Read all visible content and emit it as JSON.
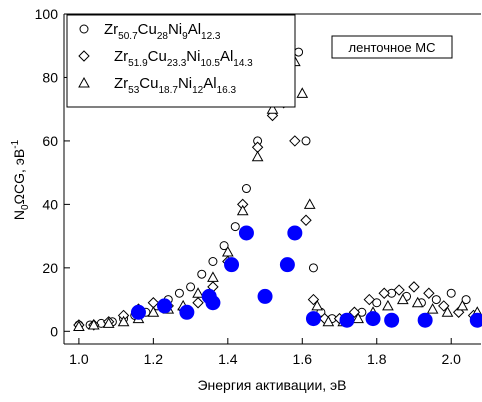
{
  "chart_data": {
    "type": "scatter",
    "ylabel": [
      "N",
      "0",
      "ΩCG, эВ",
      "-1"
    ],
    "xlabel": "Энергия активации, эВ",
    "annotation": "ленточное МС",
    "xlim": [
      0.96,
      2.08
    ],
    "ylim": [
      -4,
      100
    ],
    "xticks": [
      {
        "value": 1,
        "label": "1.0"
      },
      1.2,
      1.4,
      1.6,
      1.8,
      {
        "value": 2,
        "label": "2.0"
      }
    ],
    "yticks": [
      0,
      20,
      40,
      60,
      80,
      100
    ],
    "series": [
      {
        "name": [
          "Zr",
          "50.7",
          "Cu",
          "28",
          "Ni",
          "9",
          "Al",
          "12.3"
        ],
        "marker": "circle",
        "color": "#000000",
        "x": [
          1.0,
          1.03,
          1.06,
          1.09,
          1.12,
          1.15,
          1.18,
          1.21,
          1.24,
          1.27,
          1.3,
          1.33,
          1.36,
          1.39,
          1.42,
          1.45,
          1.48,
          1.51,
          1.54,
          1.57,
          1.59,
          1.61,
          1.63,
          1.65,
          1.68,
          1.72,
          1.76,
          1.8,
          1.84,
          1.88,
          1.92,
          1.96,
          2.0,
          2.04
        ],
        "values": [
          2,
          2,
          2.5,
          3,
          4,
          5,
          6,
          8,
          10,
          12,
          14,
          18,
          22,
          27,
          33,
          45,
          60,
          72,
          82,
          90,
          88,
          60,
          20,
          6,
          4,
          4,
          6,
          9,
          12,
          11,
          9,
          10,
          12,
          10
        ]
      },
      {
        "name": [
          "Zr",
          "51.9",
          "Cu",
          "23.3",
          "Ni",
          "10.5",
          "Al",
          "14.3"
        ],
        "marker": "diamond",
        "color": "#000000",
        "x": [
          1.0,
          1.04,
          1.08,
          1.12,
          1.16,
          1.2,
          1.24,
          1.28,
          1.32,
          1.36,
          1.4,
          1.44,
          1.48,
          1.52,
          1.55,
          1.58,
          1.61,
          1.63,
          1.66,
          1.7,
          1.74,
          1.78,
          1.82,
          1.86,
          1.9,
          1.94,
          1.98,
          2.02,
          2.06
        ],
        "values": [
          2,
          2,
          3,
          5,
          7,
          9,
          8,
          7,
          9,
          14,
          22,
          40,
          58,
          68,
          72,
          60,
          35,
          10,
          4,
          4,
          6,
          10,
          12,
          13,
          14,
          12,
          8,
          6,
          5
        ]
      },
      {
        "name": [
          "Zr",
          "53",
          "Cu",
          "18.7",
          "Ni",
          "12",
          "Al",
          "16.3"
        ],
        "marker": "triangle",
        "color": "#000000",
        "x": [
          1.0,
          1.04,
          1.08,
          1.12,
          1.16,
          1.2,
          1.24,
          1.28,
          1.32,
          1.36,
          1.4,
          1.44,
          1.48,
          1.52,
          1.55,
          1.58,
          1.6,
          1.62,
          1.64,
          1.67,
          1.71,
          1.75,
          1.79,
          1.83,
          1.87,
          1.91,
          1.95,
          1.99,
          2.03,
          2.07
        ],
        "values": [
          1.5,
          2,
          2.5,
          3,
          4,
          6,
          7,
          8,
          12,
          17,
          25,
          38,
          55,
          70,
          80,
          85,
          75,
          40,
          8,
          3,
          3,
          4,
          6,
          8,
          10,
          9,
          7,
          6,
          8,
          6
        ]
      },
      {
        "marker": "dot",
        "color": "#0000ff",
        "x": [
          1.16,
          1.23,
          1.29,
          1.35,
          1.36,
          1.41,
          1.45,
          1.5,
          1.56,
          1.58,
          1.63,
          1.72,
          1.79,
          1.84,
          1.93,
          2.07
        ],
        "values": [
          6,
          8,
          6,
          11,
          9,
          21,
          31,
          11,
          21,
          31,
          4,
          3.5,
          4,
          3.5,
          3.5,
          3.5
        ]
      }
    ]
  }
}
